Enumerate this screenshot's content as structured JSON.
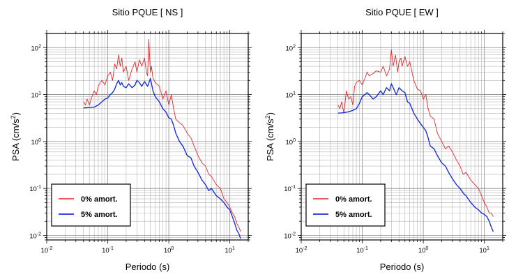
{
  "chart_data": [
    {
      "type": "line",
      "title": "Sitio PQUE [ NS ]",
      "xlabel": "Periodo (s)",
      "ylabel_base": "PSA (cm/s",
      "ylabel_sup": "2",
      "ylabel_end": ")",
      "xscale": "log",
      "yscale": "log",
      "xlim": [
        0.01,
        20
      ],
      "ylim": [
        0.008,
        200
      ],
      "grid": true,
      "x_ticks": [
        {
          "b": "10",
          "e": "-2"
        },
        {
          "b": "10",
          "e": "-1"
        },
        {
          "b": "10",
          "e": "0"
        },
        {
          "b": "10",
          "e": "1"
        }
      ],
      "y_ticks": [
        {
          "b": "10",
          "e": "-2"
        },
        {
          "b": "10",
          "e": "-1"
        },
        {
          "b": "10",
          "e": "0"
        },
        {
          "b": "10",
          "e": "1"
        },
        {
          "b": "10",
          "e": "2"
        }
      ],
      "legend_position": "bottom-left",
      "series": [
        {
          "name": "0% amort.",
          "color": "#e8262b",
          "x": [
            0.04,
            0.043,
            0.046,
            0.05,
            0.055,
            0.06,
            0.065,
            0.07,
            0.075,
            0.08,
            0.09,
            0.1,
            0.11,
            0.12,
            0.13,
            0.14,
            0.15,
            0.16,
            0.17,
            0.18,
            0.2,
            0.22,
            0.25,
            0.28,
            0.3,
            0.33,
            0.36,
            0.4,
            0.43,
            0.45,
            0.47,
            0.5,
            0.52,
            0.55,
            0.6,
            0.7,
            0.8,
            0.9,
            1.0,
            1.1,
            1.2,
            1.3,
            1.5,
            1.7,
            2.0,
            2.3,
            2.6,
            3.0,
            3.5,
            4.0,
            4.5,
            5.0,
            6.0,
            7.0,
            8.0,
            9.0,
            10.0,
            11.0,
            12.0,
            13.0,
            14.0,
            15.0
          ],
          "y": [
            7,
            6,
            8,
            6,
            9,
            12,
            10,
            15,
            18,
            20,
            16,
            25,
            30,
            20,
            45,
            35,
            70,
            40,
            60,
            30,
            40,
            20,
            35,
            50,
            30,
            55,
            40,
            60,
            30,
            25,
            150,
            30,
            40,
            22,
            18,
            15,
            8,
            12,
            6,
            10,
            5,
            3,
            2.5,
            2.2,
            1.5,
            1.2,
            0.8,
            0.5,
            0.35,
            0.3,
            0.2,
            0.18,
            0.12,
            0.1,
            0.06,
            0.05,
            0.04,
            0.03,
            0.025,
            0.018,
            0.015,
            0.012
          ]
        },
        {
          "name": "5% amort.",
          "color": "#1a2fd6",
          "x": [
            0.04,
            0.05,
            0.06,
            0.07,
            0.08,
            0.09,
            0.1,
            0.11,
            0.12,
            0.13,
            0.14,
            0.15,
            0.16,
            0.17,
            0.18,
            0.2,
            0.22,
            0.25,
            0.28,
            0.3,
            0.33,
            0.36,
            0.4,
            0.45,
            0.5,
            0.55,
            0.6,
            0.7,
            0.8,
            0.9,
            1.0,
            1.1,
            1.2,
            1.3,
            1.5,
            1.7,
            2.0,
            2.3,
            2.6,
            3.0,
            3.5,
            4.0,
            4.5,
            5.0,
            6.0,
            7.0,
            8.0,
            9.0,
            10.0,
            11.0,
            12.0,
            13.0,
            14.0,
            15.0
          ],
          "y": [
            5.2,
            5.3,
            5.4,
            6,
            7,
            8,
            8.5,
            10,
            11,
            13,
            17,
            20,
            16,
            18,
            15,
            14,
            17,
            14,
            16,
            20,
            18,
            15,
            19,
            15,
            22,
            12,
            9,
            7,
            5,
            4.2,
            3.2,
            3,
            2.2,
            1.5,
            1,
            0.8,
            0.5,
            0.45,
            0.3,
            0.22,
            0.15,
            0.12,
            0.09,
            0.1,
            0.07,
            0.06,
            0.05,
            0.04,
            0.035,
            0.025,
            0.018,
            0.013,
            0.011,
            0.0085
          ]
        }
      ]
    },
    {
      "type": "line",
      "title": "Sitio PQUE [ EW ]",
      "xlabel": "Periodo (s)",
      "ylabel_base": "PSA (cm/s",
      "ylabel_sup": "2",
      "ylabel_end": ")",
      "xscale": "log",
      "yscale": "log",
      "xlim": [
        0.01,
        20
      ],
      "ylim": [
        0.008,
        200
      ],
      "grid": true,
      "x_ticks": [
        {
          "b": "10",
          "e": "-2"
        },
        {
          "b": "10",
          "e": "-1"
        },
        {
          "b": "10",
          "e": "0"
        },
        {
          "b": "10",
          "e": "1"
        }
      ],
      "y_ticks": [
        {
          "b": "10",
          "e": "-2"
        },
        {
          "b": "10",
          "e": "-1"
        },
        {
          "b": "10",
          "e": "0"
        },
        {
          "b": "10",
          "e": "1"
        },
        {
          "b": "10",
          "e": "2"
        }
      ],
      "legend_position": "bottom-left",
      "series": [
        {
          "name": "0% amort.",
          "color": "#e8262b",
          "x": [
            0.04,
            0.043,
            0.046,
            0.05,
            0.055,
            0.06,
            0.065,
            0.07,
            0.075,
            0.08,
            0.09,
            0.1,
            0.11,
            0.12,
            0.13,
            0.15,
            0.17,
            0.2,
            0.22,
            0.25,
            0.28,
            0.3,
            0.32,
            0.35,
            0.38,
            0.4,
            0.43,
            0.45,
            0.5,
            0.55,
            0.6,
            0.7,
            0.8,
            0.9,
            1.0,
            1.1,
            1.2,
            1.3,
            1.5,
            1.7,
            2.0,
            2.3,
            2.6,
            3.0,
            3.5,
            4.0,
            4.5,
            5.0,
            6.0,
            7.0,
            8.0,
            9.0,
            10.0,
            11.0,
            12.0,
            13.0,
            14.0
          ],
          "y": [
            6,
            5,
            7,
            4,
            12,
            8,
            9,
            6,
            15,
            18,
            20,
            16,
            22,
            30,
            25,
            28,
            32,
            30,
            40,
            25,
            35,
            90,
            40,
            70,
            30,
            50,
            60,
            40,
            65,
            40,
            50,
            20,
            13,
            12,
            8,
            10,
            5,
            3.5,
            3,
            1.5,
            1,
            0.7,
            0.8,
            0.6,
            0.4,
            0.3,
            0.2,
            0.22,
            0.15,
            0.12,
            0.1,
            0.07,
            0.05,
            0.04,
            0.03,
            0.03,
            0.025
          ]
        },
        {
          "name": "5% amort.",
          "color": "#1a2fd6",
          "x": [
            0.04,
            0.05,
            0.06,
            0.07,
            0.08,
            0.09,
            0.1,
            0.11,
            0.12,
            0.13,
            0.15,
            0.17,
            0.2,
            0.22,
            0.25,
            0.28,
            0.3,
            0.33,
            0.36,
            0.4,
            0.45,
            0.5,
            0.55,
            0.6,
            0.7,
            0.8,
            0.9,
            1.0,
            1.1,
            1.2,
            1.3,
            1.5,
            1.7,
            2.0,
            2.3,
            2.6,
            3.0,
            3.5,
            4.0,
            4.5,
            5.0,
            6.0,
            7.0,
            8.0,
            9.0,
            10.0,
            11.0,
            12.0,
            13.0,
            14.0
          ],
          "y": [
            4,
            4.1,
            4.3,
            4.6,
            5,
            6.5,
            9,
            10,
            11,
            10,
            8,
            9,
            12,
            10,
            14,
            12,
            17,
            13,
            10,
            14,
            12,
            11,
            7,
            6.5,
            4,
            3,
            2.4,
            2,
            1.7,
            1.2,
            0.8,
            0.7,
            0.5,
            0.35,
            0.3,
            0.22,
            0.16,
            0.12,
            0.1,
            0.08,
            0.07,
            0.05,
            0.04,
            0.035,
            0.03,
            0.028,
            0.025,
            0.02,
            0.015,
            0.012
          ]
        }
      ]
    }
  ]
}
